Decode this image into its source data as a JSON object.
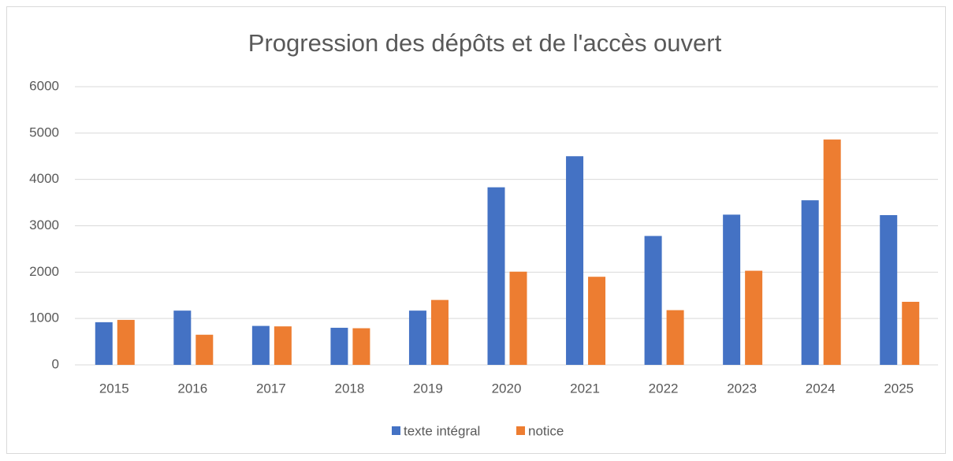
{
  "chart_data": {
    "type": "bar",
    "title": "Progression des dépôts et de l'accès ouvert",
    "categories": [
      "2015",
      "2016",
      "2017",
      "2018",
      "2019",
      "2020",
      "2021",
      "2022",
      "2023",
      "2024",
      "2025"
    ],
    "series": [
      {
        "name": "texte intégral",
        "color": "#4472c4",
        "values": [
          920,
          1170,
          840,
          800,
          1170,
          3830,
          4500,
          2780,
          3240,
          3550,
          3230
        ]
      },
      {
        "name": "notice",
        "color": "#ed7d31",
        "values": [
          970,
          650,
          830,
          790,
          1400,
          2010,
          1900,
          1180,
          2030,
          4860,
          1360
        ]
      }
    ],
    "ylim": [
      0,
      6000
    ],
    "yticks": [
      0,
      1000,
      2000,
      3000,
      4000,
      5000,
      6000
    ],
    "grid": true,
    "legend": "bottom"
  }
}
